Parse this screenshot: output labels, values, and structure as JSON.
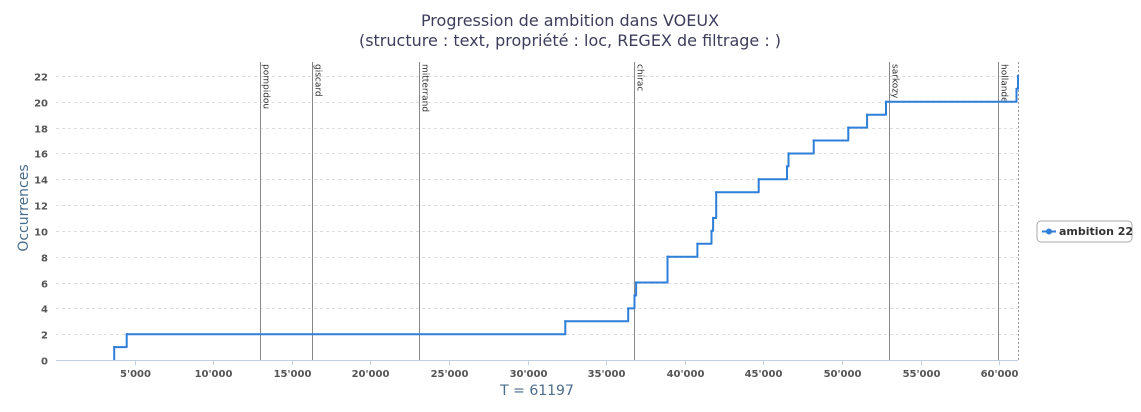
{
  "chart_data": {
    "type": "line",
    "title": "Progression de ambition dans VOEUX",
    "subtitle": "(structure :  text, propriété :  loc, REGEX de filtrage : )",
    "xlabel": "T = 61197",
    "ylabel": "Occurrences",
    "xlim": [
      0,
      61197
    ],
    "ylim": [
      0,
      22
    ],
    "x_ticks": [
      5000,
      10000,
      15000,
      20000,
      25000,
      30000,
      35000,
      40000,
      45000,
      50000,
      55000,
      60000
    ],
    "x_tick_labels": [
      "5'000",
      "10'000",
      "15'000",
      "20'000",
      "25'000",
      "30'000",
      "35'000",
      "40'000",
      "45'000",
      "50'000",
      "55'000",
      "60'000"
    ],
    "y_ticks": [
      0,
      2,
      4,
      6,
      8,
      10,
      12,
      14,
      16,
      18,
      20,
      22
    ],
    "y_tick_labels": [
      "0",
      "2",
      "4",
      "6",
      "8",
      "10",
      "12",
      "14",
      "16",
      "18",
      "20",
      "22"
    ],
    "grid": true,
    "legend_position": "right",
    "series": [
      {
        "name": "ambition 22",
        "color": "#2f7ed8",
        "step": true,
        "x": [
          3700,
          4500,
          32400,
          36400,
          36800,
          36900,
          38900,
          40800,
          41700,
          41800,
          42000,
          44700,
          46500,
          46600,
          48200,
          50400,
          51600,
          52800,
          61100,
          61197
        ],
        "y": [
          1,
          2,
          3,
          4,
          5,
          6,
          8,
          9,
          10,
          11,
          13,
          14,
          15,
          16,
          17,
          18,
          19,
          20,
          21,
          22
        ]
      }
    ],
    "markers": [
      {
        "label": "pompidou",
        "x": 13000
      },
      {
        "label": "giscard",
        "x": 16300
      },
      {
        "label": "mitterrand",
        "x": 23100
      },
      {
        "label": "chirac",
        "x": 36800
      },
      {
        "label": "sarkozy",
        "x": 53000
      },
      {
        "label": "hollande",
        "x": 59900
      }
    ],
    "end_marker_x": 61197
  }
}
